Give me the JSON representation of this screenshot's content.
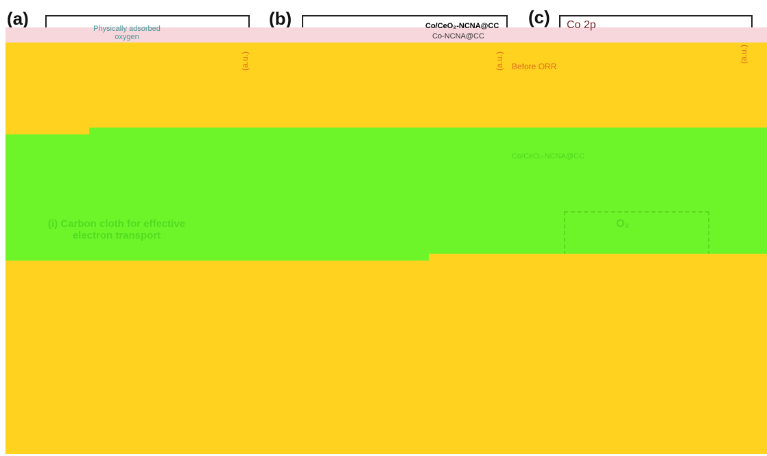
{
  "panels": [
    {
      "label": "(a)",
      "annotation": "Physically adsorbed oxygen",
      "axis": "(a.u.)"
    },
    {
      "label": "(b)",
      "legend": [
        "Co/CeO₂-NCNA@CC",
        "Co-NCNA@CC"
      ],
      "axis": "(a.u.)"
    },
    {
      "label": "(c)",
      "title": "Co 2p",
      "annotation": "Before ORR",
      "axis": "(a.u.)"
    }
  ],
  "scheme": {
    "sample": "Co/CeO₂-NCNA@CC",
    "feature": "(i) Carbon cloth for effective electron transport",
    "molecule": "O₂"
  }
}
